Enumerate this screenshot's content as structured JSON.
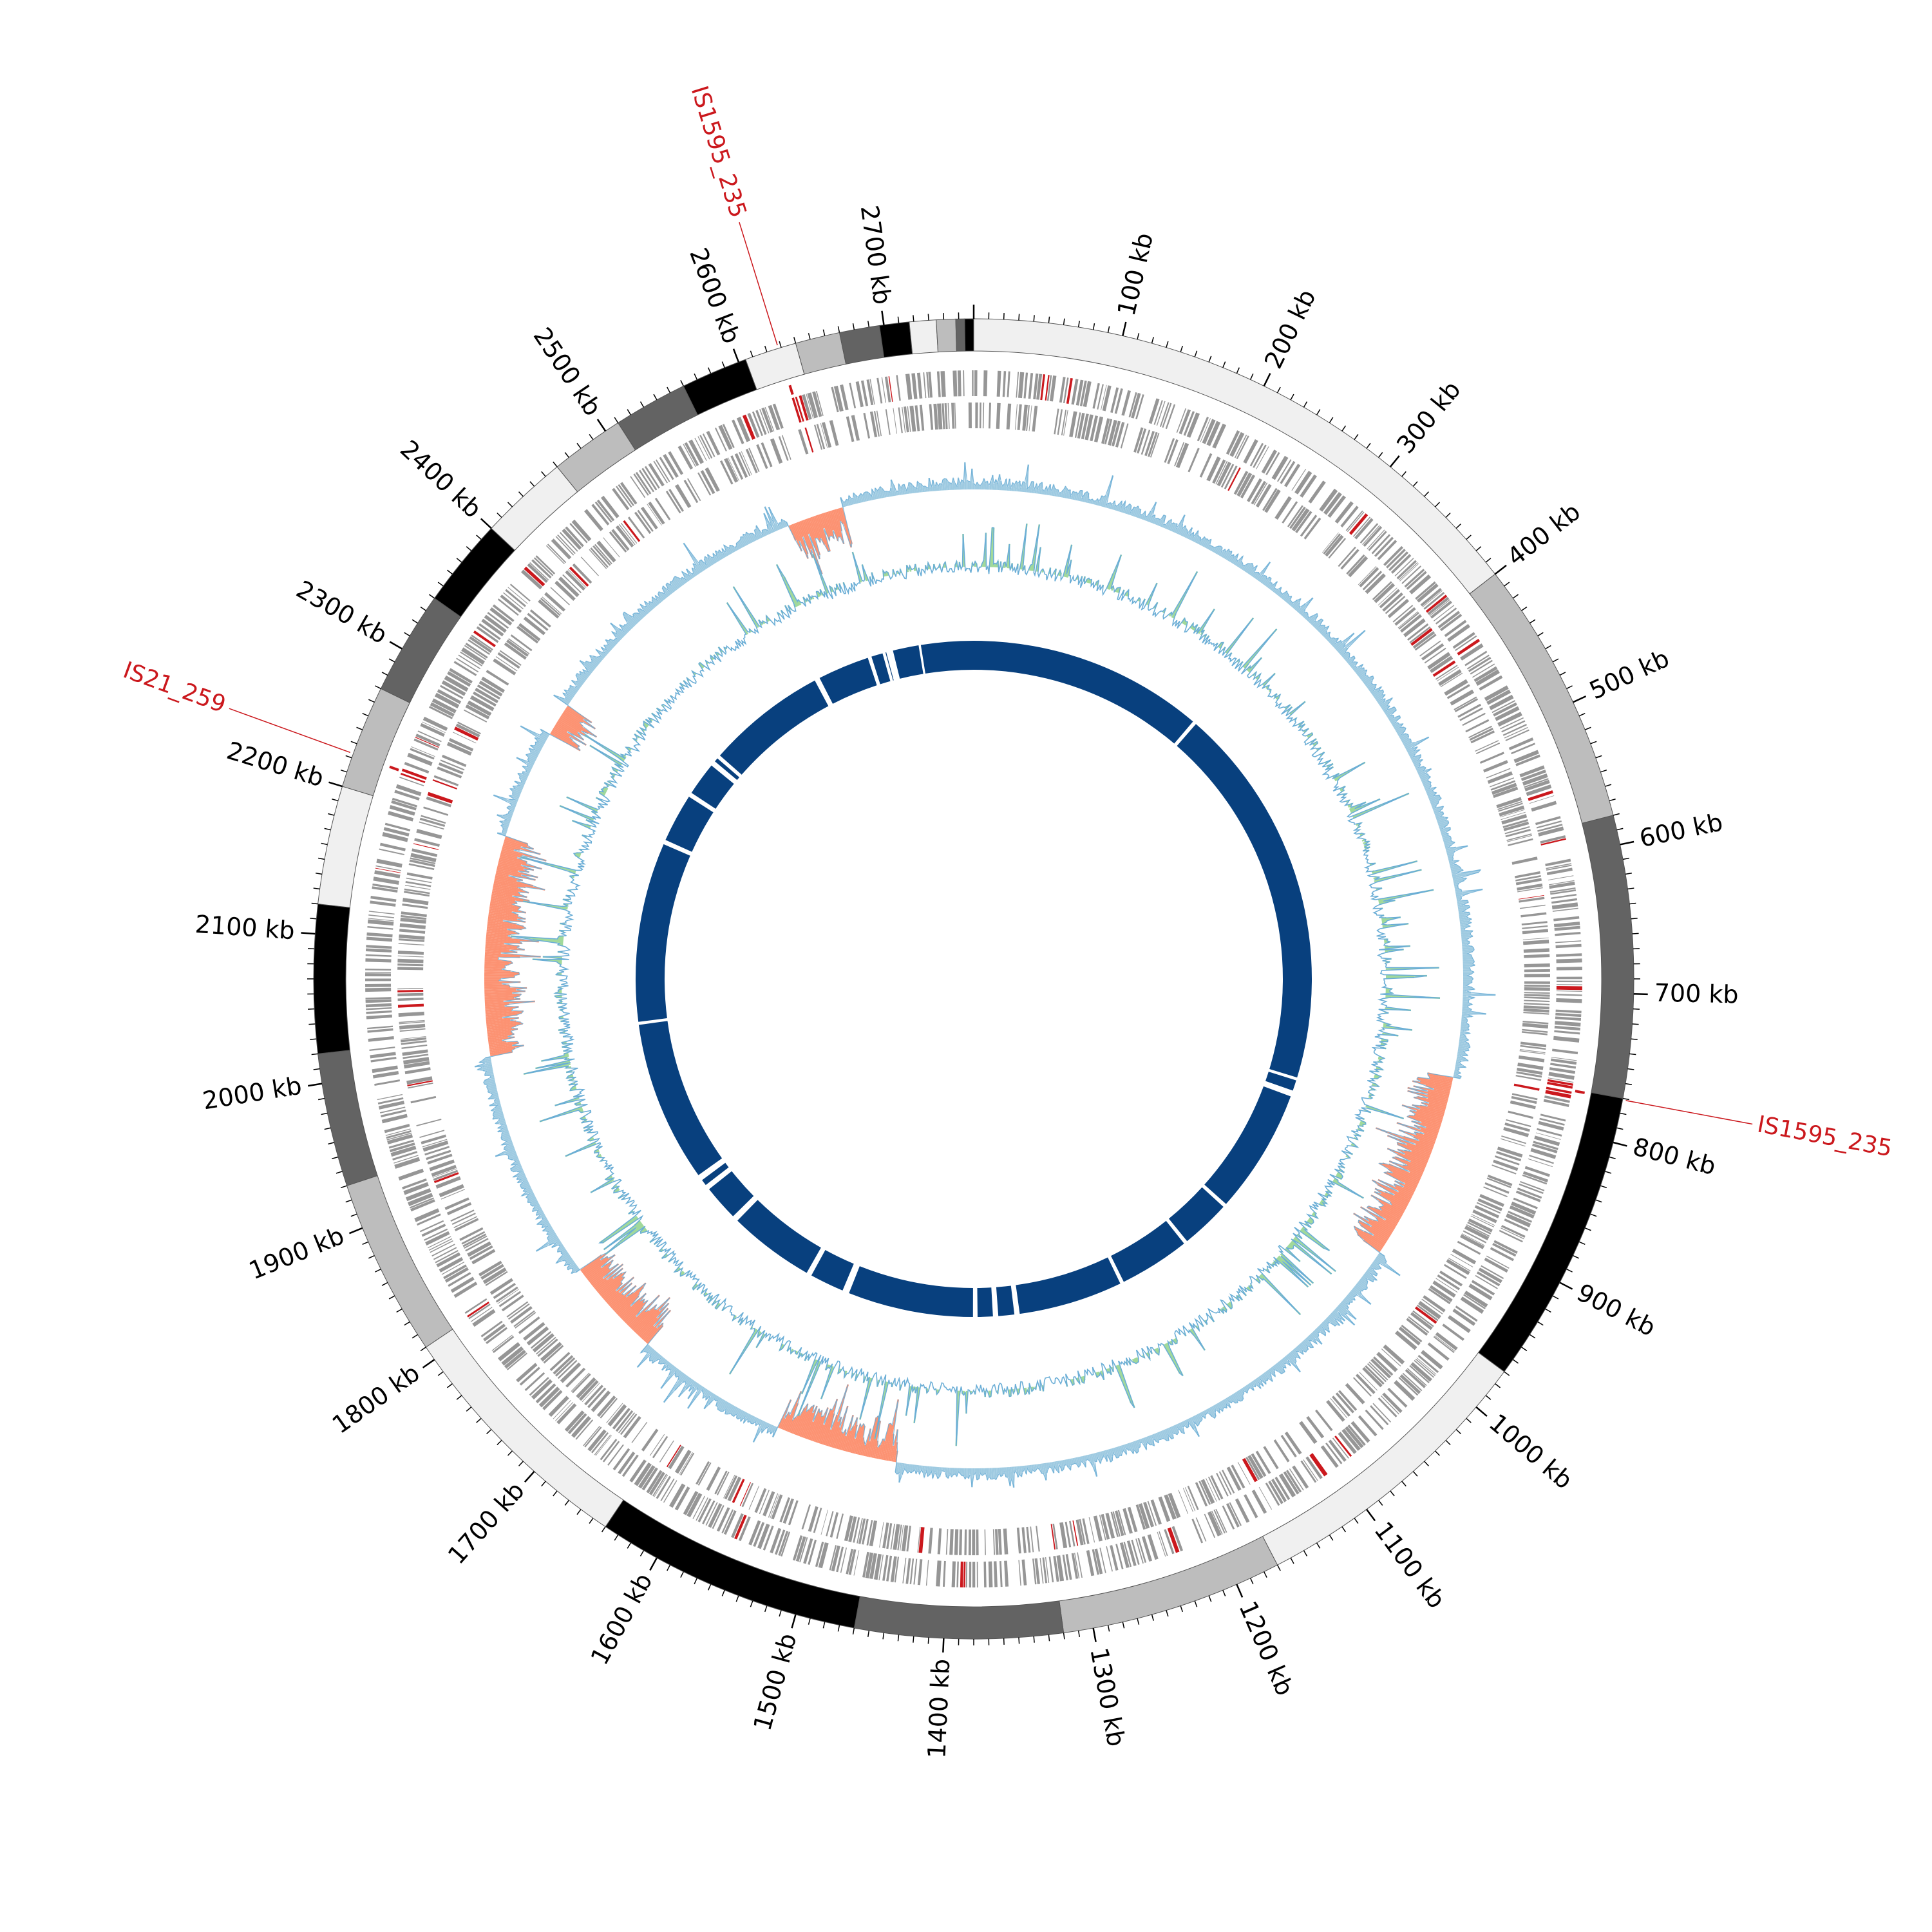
{
  "chart_data": {
    "type": "circular-genome",
    "genome_length_kb": 2760,
    "scale_ticks": [
      {
        "label": "100 kb",
        "kb": 100
      },
      {
        "label": "200 kb",
        "kb": 200
      },
      {
        "label": "300 kb",
        "kb": 300
      },
      {
        "label": "400 kb",
        "kb": 400
      },
      {
        "label": "500 kb",
        "kb": 500
      },
      {
        "label": "600 kb",
        "kb": 600
      },
      {
        "label": "700 kb",
        "kb": 700
      },
      {
        "label": "800 kb",
        "kb": 800
      },
      {
        "label": "900 kb",
        "kb": 900
      },
      {
        "label": "1000 kb",
        "kb": 1000
      },
      {
        "label": "1100 kb",
        "kb": 1100
      },
      {
        "label": "1200 kb",
        "kb": 1200
      },
      {
        "label": "1300 kb",
        "kb": 1300
      },
      {
        "label": "1400 kb",
        "kb": 1400
      },
      {
        "label": "1500 kb",
        "kb": 1500
      },
      {
        "label": "1600 kb",
        "kb": 1600
      },
      {
        "label": "1700 kb",
        "kb": 1700
      },
      {
        "label": "1800 kb",
        "kb": 1800
      },
      {
        "label": "1900 kb",
        "kb": 1900
      },
      {
        "label": "2000 kb",
        "kb": 2000
      },
      {
        "label": "2100 kb",
        "kb": 2100
      },
      {
        "label": "2200 kb",
        "kb": 2200
      },
      {
        "label": "2300 kb",
        "kb": 2300
      },
      {
        "label": "2400 kb",
        "kb": 2400
      },
      {
        "label": "2500 kb",
        "kb": 2500
      },
      {
        "label": "2600 kb",
        "kb": 2600
      },
      {
        "label": "2700 kb",
        "kb": 2700
      }
    ],
    "contigs": [
      {
        "start": 0,
        "end": 400,
        "color": "#f0f0f0"
      },
      {
        "start": 400,
        "end": 580,
        "color": "#bdbdbd"
      },
      {
        "start": 580,
        "end": 770,
        "color": "#636363"
      },
      {
        "start": 770,
        "end": 970,
        "color": "#000000"
      },
      {
        "start": 970,
        "end": 1170,
        "color": "#f0f0f0"
      },
      {
        "start": 1170,
        "end": 1320,
        "color": "#bdbdbd"
      },
      {
        "start": 1320,
        "end": 1460,
        "color": "#636363"
      },
      {
        "start": 1460,
        "end": 1640,
        "color": "#000000"
      },
      {
        "start": 1640,
        "end": 1810,
        "color": "#f0f0f0"
      },
      {
        "start": 1810,
        "end": 1930,
        "color": "#bdbdbd"
      },
      {
        "start": 1930,
        "end": 2020,
        "color": "#636363"
      },
      {
        "start": 2020,
        "end": 2120,
        "color": "#000000"
      },
      {
        "start": 2120,
        "end": 2200,
        "color": "#f0f0f0"
      },
      {
        "start": 2200,
        "end": 2270,
        "color": "#bdbdbd"
      },
      {
        "start": 2270,
        "end": 2340,
        "color": "#636363"
      },
      {
        "start": 2340,
        "end": 2400,
        "color": "#000000"
      },
      {
        "start": 2400,
        "end": 2460,
        "color": "#f0f0f0"
      },
      {
        "start": 2460,
        "end": 2510,
        "color": "#bdbdbd"
      },
      {
        "start": 2510,
        "end": 2560,
        "color": "#636363"
      },
      {
        "start": 2560,
        "end": 2605,
        "color": "#000000"
      },
      {
        "start": 2605,
        "end": 2640,
        "color": "#f0f0f0"
      },
      {
        "start": 2640,
        "end": 2670,
        "color": "#bdbdbd"
      },
      {
        "start": 2670,
        "end": 2697,
        "color": "#636363"
      },
      {
        "start": 2697,
        "end": 2717,
        "color": "#000000"
      },
      {
        "start": 2717,
        "end": 2735,
        "color": "#f0f0f0"
      },
      {
        "start": 2735,
        "end": 2748,
        "color": "#bdbdbd"
      },
      {
        "start": 2748,
        "end": 2754,
        "color": "#636363"
      },
      {
        "start": 2754,
        "end": 2760,
        "color": "#000000"
      }
    ],
    "is_elements": [
      {
        "label": "IS1595_235",
        "kb": 2628
      },
      {
        "label": "IS1595_235",
        "kb": 771
      },
      {
        "label": "IS21_259",
        "kb": 2223
      }
    ],
    "gaps_kb": [
      310,
      820,
      838,
      1010,
      1080,
      1178,
      1320,
      1348,
      1375,
      1546,
      1600,
      1720,
      1775,
      1790,
      2010,
      2250,
      2320,
      2370,
      2382,
      2545,
      2620,
      2640,
      2645,
      2688
    ],
    "colors": {
      "genes": "#969696",
      "is_highlight": "#cb181d",
      "gc_content_above": "#9ecae1",
      "gc_content_below": "#fc9272",
      "gc_skew_positive": "#a1d99b",
      "gc_skew_line": "#6baed6",
      "blast_hits": "#08407e",
      "is_label": "#cb181d"
    }
  }
}
